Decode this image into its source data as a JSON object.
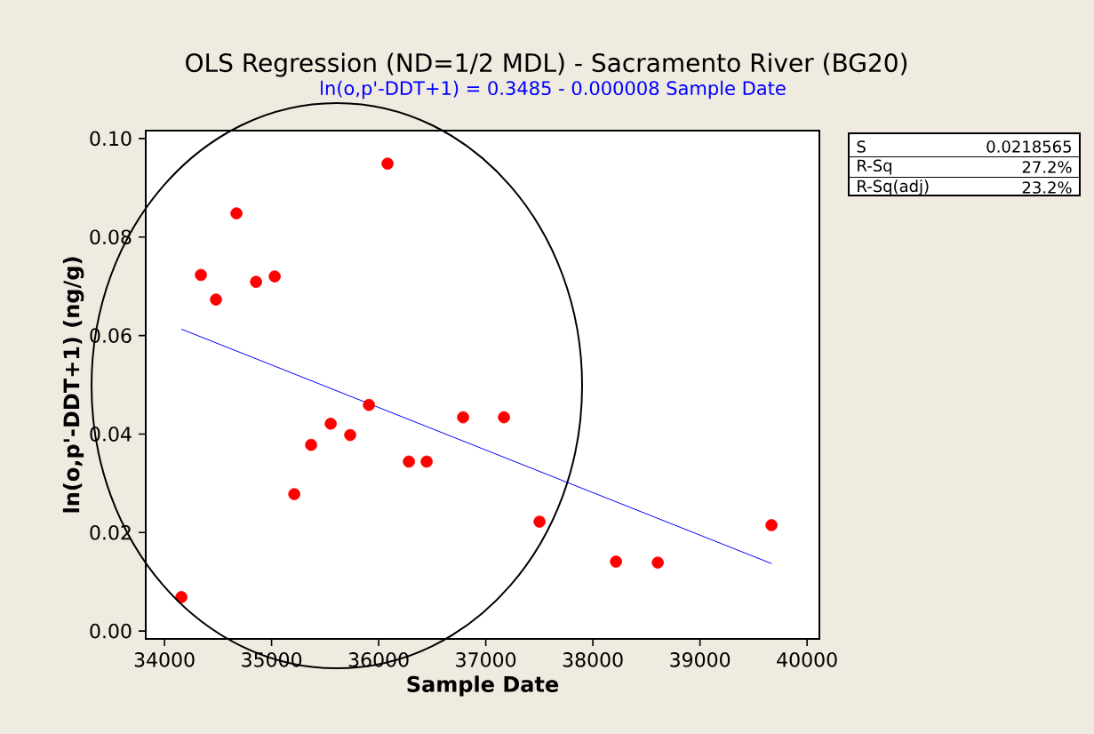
{
  "chart_data": {
    "type": "scatter",
    "title": "OLS Regression (ND=1/2 MDL) - Sacramento River (BG20)",
    "subtitle": "ln(o,p'-DDT+1) =  0.3485 - 0.000008 Sample Date",
    "xlabel": "Sample Date",
    "ylabel": "ln(o,p'-DDT+1) (ng/g)",
    "annotations": [
      "S",
      "0.0218565",
      "R-Sq",
      "27.2%",
      "R-Sq(adj)",
      "23.2%"
    ],
    "xlim": [
      33825,
      40115
    ],
    "ylim": [
      -0.0016,
      0.1016
    ],
    "xticks": [
      34000,
      35000,
      36000,
      37000,
      38000,
      39000,
      40000
    ],
    "yticks": [
      {
        "value": 0,
        "label": "0.00"
      },
      {
        "value": 0.02,
        "label": "0.02"
      },
      {
        "value": 0.04,
        "label": "0.04"
      },
      {
        "value": 0.06,
        "label": "0.06"
      },
      {
        "value": 0.08,
        "label": "0.08"
      },
      {
        "value": 0.1,
        "label": "0.10"
      }
    ],
    "series": [
      {
        "type": "scatter",
        "color": "#ff0000",
        "x": [
          34158,
          34340,
          34481,
          34672,
          34855,
          35029,
          35212,
          35369,
          35552,
          35734,
          35909,
          36083,
          36282,
          36448,
          36788,
          37170,
          37502,
          38216,
          38606,
          39668
        ],
        "values": [
          0.0069,
          0.0723,
          0.0673,
          0.0848,
          0.0709,
          0.072,
          0.0278,
          0.0378,
          0.0421,
          0.0398,
          0.0459,
          0.0949,
          0.0344,
          0.0344,
          0.0434,
          0.0434,
          0.0222,
          0.0141,
          0.0139,
          0.0215
        ]
      },
      {
        "type": "line",
        "marker": "none",
        "color": "#0000ff",
        "x": [
          34158,
          39668
        ],
        "values": [
          0.0613,
          0.0137
        ]
      }
    ]
  }
}
